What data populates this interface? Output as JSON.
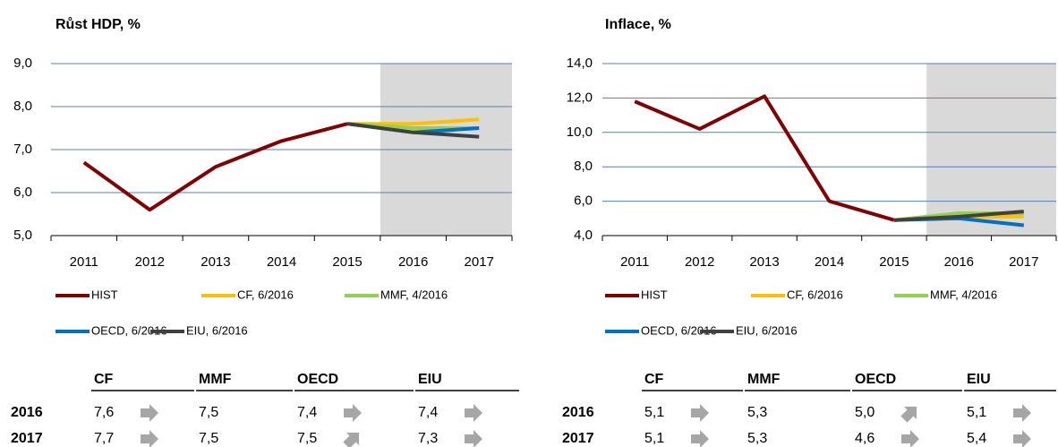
{
  "chart_data": [
    {
      "type": "line",
      "title": "Růst HDP, %",
      "categories": [
        "2011",
        "2012",
        "2013",
        "2014",
        "2015",
        "2016",
        "2017"
      ],
      "ylim": [
        5,
        9
      ],
      "yticks": [
        {
          "value": 5,
          "label": "5,0"
        },
        {
          "value": 6,
          "label": "6,0"
        },
        {
          "value": 7,
          "label": "7,0"
        },
        {
          "value": 8,
          "label": "8,0"
        },
        {
          "value": 9,
          "label": "9,0"
        }
      ],
      "grid": true,
      "series": [
        {
          "name": "HIST",
          "color": "#7f0000",
          "values": [
            6.7,
            5.6,
            6.6,
            7.2,
            7.6,
            null,
            null
          ]
        },
        {
          "name": "CF, 6/2016",
          "color": "#ffc000",
          "values": [
            null,
            null,
            null,
            null,
            7.6,
            7.6,
            7.7
          ]
        },
        {
          "name": "MMF, 4/2016",
          "color": "#92d050",
          "values": [
            null,
            null,
            null,
            null,
            7.6,
            7.5,
            7.5
          ]
        },
        {
          "name": "OECD, 6/2016",
          "color": "#0070c0",
          "values": [
            null,
            null,
            null,
            null,
            7.6,
            7.4,
            7.5
          ]
        },
        {
          "name": "EIU, 6/2016",
          "color": "#404040",
          "values": [
            null,
            null,
            null,
            null,
            7.6,
            7.4,
            7.3
          ]
        }
      ]
    },
    {
      "type": "line",
      "title": "Inflace, %",
      "categories": [
        "2011",
        "2012",
        "2013",
        "2014",
        "2015",
        "2016",
        "2017"
      ],
      "ylim": [
        4,
        14
      ],
      "yticks": [
        {
          "value": 4,
          "label": "4,0"
        },
        {
          "value": 6,
          "label": "6,0"
        },
        {
          "value": 8,
          "label": "8,0"
        },
        {
          "value": 10,
          "label": "10,0"
        },
        {
          "value": 12,
          "label": "12,0"
        },
        {
          "value": 14,
          "label": "14,0"
        }
      ],
      "grid": true,
      "series": [
        {
          "name": "HIST",
          "color": "#7f0000",
          "values": [
            11.8,
            10.2,
            12.1,
            6.0,
            4.9,
            null,
            null
          ]
        },
        {
          "name": "CF, 6/2016",
          "color": "#ffc000",
          "values": [
            null,
            null,
            null,
            null,
            4.9,
            5.1,
            5.1
          ]
        },
        {
          "name": "MMF, 4/2016",
          "color": "#92d050",
          "values": [
            null,
            null,
            null,
            null,
            4.9,
            5.3,
            5.3
          ]
        },
        {
          "name": "OECD, 6/2016",
          "color": "#0070c0",
          "values": [
            null,
            null,
            null,
            null,
            4.9,
            5.0,
            4.6
          ]
        },
        {
          "name": "EIU, 6/2016",
          "color": "#404040",
          "values": [
            null,
            null,
            null,
            null,
            4.9,
            5.1,
            5.4
          ]
        }
      ]
    }
  ],
  "tables": [
    {
      "columns": [
        "CF",
        "MMF",
        "OECD",
        "EIU"
      ],
      "rows": [
        {
          "label": "2016",
          "cells": [
            {
              "text": "7,6",
              "arrow": "right"
            },
            {
              "text": "7,5"
            },
            {
              "text": "7,4",
              "arrow": "right"
            },
            {
              "text": "7,4",
              "arrow": "right"
            }
          ]
        },
        {
          "label": "2017",
          "cells": [
            {
              "text": "7,7",
              "arrow": "right"
            },
            {
              "text": "7,5"
            },
            {
              "text": "7,5",
              "arrow": "up-right"
            },
            {
              "text": "7,3",
              "arrow": "right"
            }
          ]
        }
      ]
    },
    {
      "columns": [
        "CF",
        "MMF",
        "OECD",
        "EIU"
      ],
      "rows": [
        {
          "label": "2016",
          "cells": [
            {
              "text": "5,1",
              "arrow": "right"
            },
            {
              "text": "5,3"
            },
            {
              "text": "5,0",
              "arrow": "up-right"
            },
            {
              "text": "5,1",
              "arrow": "right"
            }
          ]
        },
        {
          "label": "2017",
          "cells": [
            {
              "text": "5,1",
              "arrow": "right"
            },
            {
              "text": "5,3"
            },
            {
              "text": "4,6",
              "arrow": "right"
            },
            {
              "text": "5,4",
              "arrow": "right"
            }
          ]
        }
      ]
    }
  ]
}
